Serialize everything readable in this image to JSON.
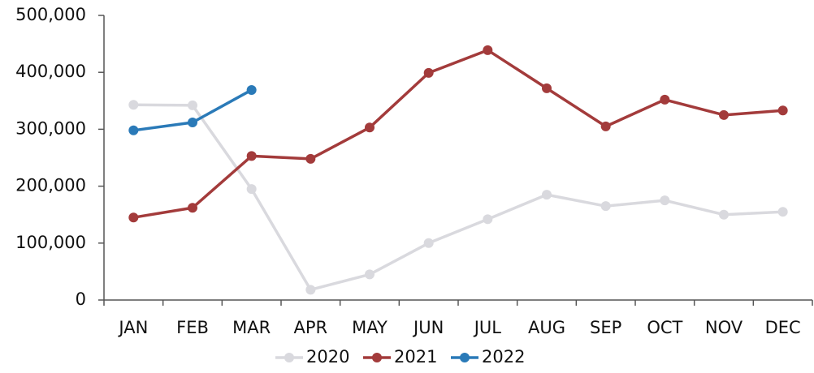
{
  "chart_data": {
    "type": "line",
    "categories": [
      "JAN",
      "FEB",
      "MAR",
      "APR",
      "MAY",
      "JUN",
      "JUL",
      "AUG",
      "SEP",
      "OCT",
      "NOV",
      "DEC"
    ],
    "series": [
      {
        "name": "2020",
        "color": "#d9d9de",
        "values": [
          343000,
          342000,
          195000,
          18000,
          45000,
          100000,
          142000,
          185000,
          165000,
          175000,
          150000,
          155000
        ]
      },
      {
        "name": "2021",
        "color": "#a33b3b",
        "values": [
          145000,
          162000,
          253000,
          248000,
          303000,
          399000,
          439000,
          372000,
          305000,
          352000,
          325000,
          333000
        ]
      },
      {
        "name": "2022",
        "color": "#2a7ab8",
        "values": [
          298000,
          312000,
          369000,
          null,
          null,
          null,
          null,
          null,
          null,
          null,
          null,
          null
        ]
      }
    ],
    "ylim": [
      0,
      500000
    ],
    "yticks": [
      0,
      {
        "value": 100000,
        "label": "100,000"
      },
      {
        "value": 200000,
        "label": "200,000"
      },
      {
        "value": 300000,
        "label": "300,000"
      },
      {
        "value": 400000,
        "label": "400,000"
      },
      {
        "value": 500000,
        "label": "500,000"
      }
    ],
    "grid": false,
    "legend": "bottom"
  }
}
